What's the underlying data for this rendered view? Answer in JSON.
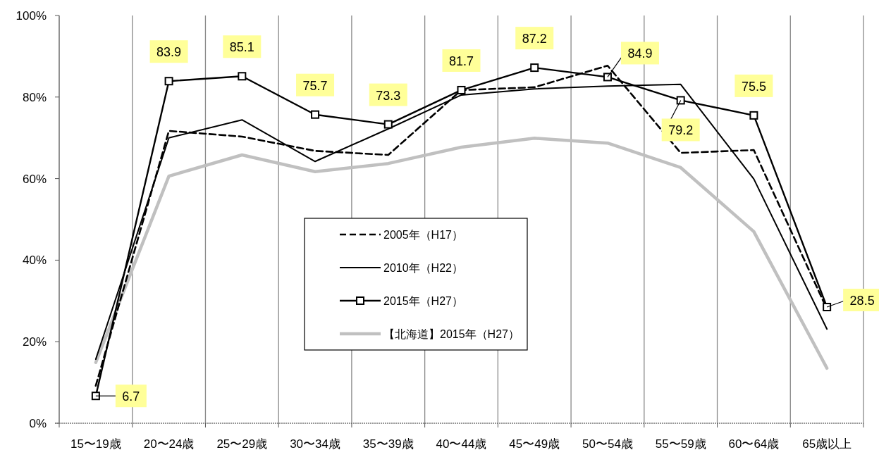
{
  "chart_data": {
    "type": "line",
    "categories": [
      "15〜19歳",
      "20〜24歳",
      "25〜29歳",
      "30〜34歳",
      "35〜39歳",
      "40〜44歳",
      "45〜49歳",
      "50〜54歳",
      "55〜59歳",
      "60〜64歳",
      "65歳以上"
    ],
    "ylim": [
      0,
      100
    ],
    "yticks": [
      {
        "value": 0,
        "label": "0%"
      },
      {
        "value": 20,
        "label": "20%"
      },
      {
        "value": 40,
        "label": "40%"
      },
      {
        "value": 60,
        "label": "60%"
      },
      {
        "value": 80,
        "label": "80%"
      },
      {
        "value": 100,
        "label": "100%"
      }
    ],
    "grid": "x",
    "legend": "center",
    "series": [
      {
        "name": "2005年（H17）",
        "color": "#000000",
        "line_style": "dashed",
        "marker": "none",
        "values": [
          9.2,
          71.7,
          70.3,
          66.8,
          65.8,
          81.7,
          82.4,
          87.7,
          66.3,
          67.0,
          28.0
        ]
      },
      {
        "name": "2010年（H22）",
        "color": "#000000",
        "line_style": "solid",
        "marker": "none",
        "values": [
          15.7,
          70.0,
          74.4,
          64.2,
          72.2,
          80.5,
          82.0,
          82.7,
          83.1,
          59.9,
          23.1
        ]
      },
      {
        "name": "2015年（H27）",
        "color": "#000000",
        "line_style": "solid",
        "marker": "square",
        "values": [
          6.7,
          83.9,
          85.1,
          75.7,
          73.3,
          81.7,
          87.2,
          84.9,
          79.2,
          75.5,
          28.5
        ],
        "value_labels": [
          "6.7",
          "83.9",
          "85.1",
          "75.7",
          "73.3",
          "81.7",
          "87.2",
          "84.9",
          "79.2",
          "75.5",
          "28.5"
        ]
      },
      {
        "name": "【北海道】2015年（H27）",
        "color": "#c0c0c0",
        "line_style": "solid",
        "marker": "none",
        "values": [
          14.9,
          60.6,
          65.8,
          61.7,
          63.7,
          67.7,
          69.9,
          68.7,
          62.7,
          47.0,
          13.5
        ]
      }
    ]
  }
}
